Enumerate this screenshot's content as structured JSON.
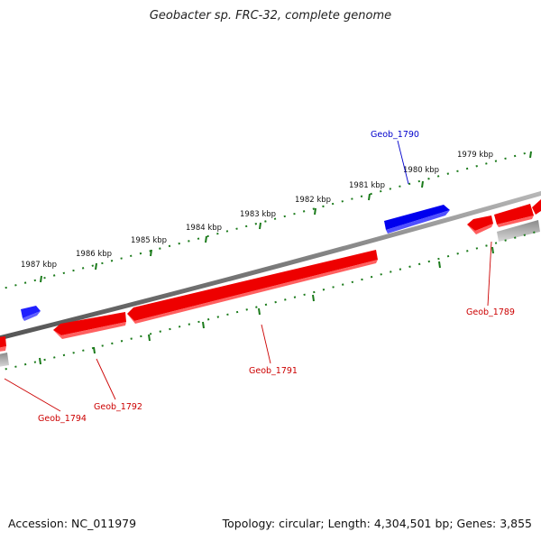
{
  "title": "Geobacter sp. FRC-32, complete genome",
  "footer": {
    "accession": "Accession: NC_011979",
    "summary": "Topology: circular; Length: 4,304,501 bp; Genes: 3,855"
  },
  "colors": {
    "forward_gene": "#0000ee",
    "reverse_gene": "#ee0000",
    "other_feature": "#999999",
    "backbone": "#808080",
    "ticks": "#1a7a1a"
  },
  "scale_ticks": [
    {
      "label": "1979 kbp"
    },
    {
      "label": "1980 kbp"
    },
    {
      "label": "1981 kbp"
    },
    {
      "label": "1982 kbp"
    },
    {
      "label": "1983 kbp"
    },
    {
      "label": "1984 kbp"
    },
    {
      "label": "1985 kbp"
    },
    {
      "label": "1986 kbp"
    },
    {
      "label": "1987 kbp"
    }
  ],
  "gene_labels": [
    {
      "name": "Geob_1790",
      "strand": "forward"
    },
    {
      "name": "Geob_1789",
      "strand": "reverse"
    },
    {
      "name": "Geob_1791",
      "strand": "reverse"
    },
    {
      "name": "Geob_1792",
      "strand": "reverse"
    },
    {
      "name": "Geob_1794",
      "strand": "reverse"
    }
  ]
}
